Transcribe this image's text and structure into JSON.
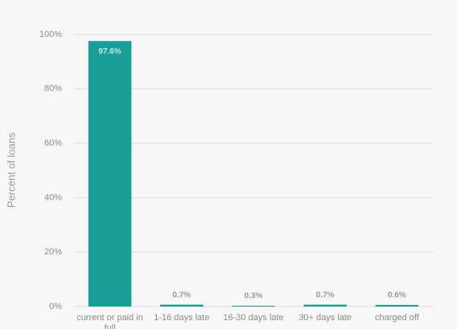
{
  "chart_data": {
    "type": "bar",
    "y_label": "Percent of loans",
    "categories": [
      "current or paid in full",
      "1-16 days late",
      "16-30 days late",
      "30+ days late",
      "charged off"
    ],
    "values": [
      97.6,
      0.7,
      0.3,
      0.7,
      0.6
    ],
    "value_labels": [
      "97.6%",
      "0.7%",
      "0.3%",
      "0.7%",
      "0.6%"
    ],
    "color": "#1a9e99",
    "ylim": [
      0,
      100
    ],
    "yticks": [
      {
        "value": 0,
        "label": "0%"
      },
      {
        "value": 20,
        "label": "20%"
      },
      {
        "value": 40,
        "label": "40%"
      },
      {
        "value": 60,
        "label": "60%"
      },
      {
        "value": 80,
        "label": "80%"
      },
      {
        "value": 100,
        "label": "100%"
      }
    ],
    "grid": true
  }
}
